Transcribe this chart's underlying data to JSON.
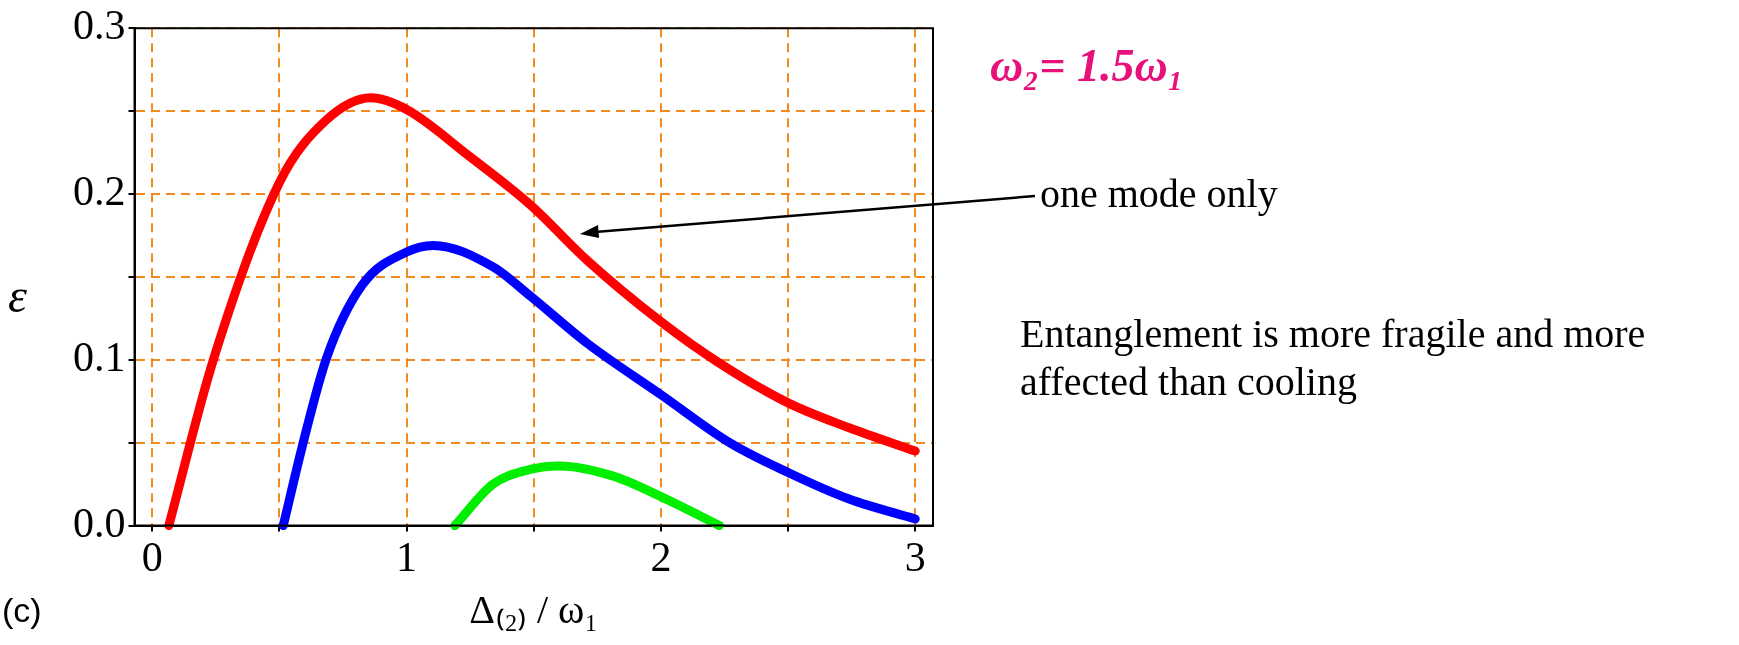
{
  "chart_data": {
    "type": "line",
    "xlabel": "Δ₍₂₎ / ω₁",
    "ylabel": "ε",
    "xlim": [
      -0.07,
      3.07
    ],
    "ylim": [
      0,
      0.3
    ],
    "xticks": [
      0,
      {
        "value": 0.5,
        "label": null
      },
      1,
      {
        "value": 1.5,
        "label": null
      },
      2,
      {
        "value": 2.5,
        "label": null
      },
      3
    ],
    "yticks": [
      {
        "value": 0,
        "label": "0.0"
      },
      {
        "value": 0.05,
        "label": null
      },
      0.1,
      {
        "value": 0.15,
        "label": null
      },
      0.2,
      {
        "value": 0.25,
        "label": null
      },
      0.3
    ],
    "grid": true,
    "legend": false,
    "marker": "none",
    "line_style": "solid",
    "series": [
      {
        "color": "#ff0000",
        "x": [
          0.065,
          0.24,
          0.5,
          0.68,
          0.86,
          1.0,
          1.245,
          1.49,
          1.71,
          2.0,
          2.23,
          2.5,
          2.74,
          3.0
        ],
        "values": [
          0,
          0.1,
          0.207,
          0.244,
          0.258,
          0.251,
          0.223,
          0.193,
          0.16,
          0.123,
          0.098,
          0.074,
          0.059,
          0.045
        ]
      },
      {
        "color": "#0000ff",
        "x": [
          0.515,
          0.59,
          0.685,
          0.825,
          1.0,
          1.105,
          1.34,
          1.49,
          1.71,
          2.0,
          2.27,
          2.5,
          2.74,
          3.0
        ],
        "values": [
          0,
          0.048,
          0.101,
          0.145,
          0.165,
          0.169,
          0.156,
          0.138,
          0.11,
          0.079,
          0.05,
          0.032,
          0.016,
          0.004
        ]
      },
      {
        "color": "#00ee00",
        "x": [
          1.19,
          1.34,
          1.49,
          1.6,
          1.81,
          2.0,
          2.23
        ],
        "values": [
          0,
          0.025,
          0.034,
          0.036,
          0.03,
          0.0175,
          0
        ]
      }
    ],
    "annotations": [
      "ω₂= 1.5ω₁",
      "one mode only",
      "Entanglement is more fragile and more affected than cooling",
      "(c)"
    ]
  }
}
